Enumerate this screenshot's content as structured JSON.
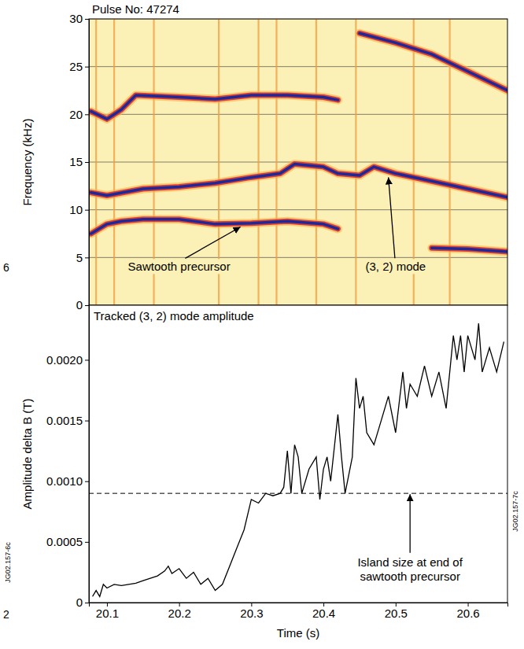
{
  "chart_data": [
    {
      "type": "spectrogram",
      "title": "Pulse No: 47274",
      "y_label": "Frequency (kHz)",
      "xlim": [
        20.075,
        20.655
      ],
      "ylim": [
        0,
        30
      ],
      "yticks": [
        0,
        5,
        10,
        15,
        20,
        25,
        30
      ],
      "grid": true,
      "tick_labels": "y",
      "series": [
        {
          "type": "line",
          "color": "#1b2a9a",
          "x": [
            20.078,
            20.1,
            20.15,
            20.2,
            20.25,
            20.3,
            20.34,
            20.36,
            20.4,
            20.42,
            20.45,
            20.47,
            20.5,
            20.55,
            20.6,
            20.655
          ],
          "values": [
            11.8,
            11.5,
            12.2,
            12.4,
            12.8,
            13.4,
            13.8,
            14.8,
            14.5,
            13.8,
            13.6,
            14.5,
            13.8,
            13.0,
            12.2,
            11.3
          ]
        },
        {
          "type": "line",
          "color": "#1b2a9a",
          "x": [
            20.078,
            20.1,
            20.12,
            20.14,
            20.2,
            20.25,
            20.3,
            20.35,
            20.4,
            20.42
          ],
          "values": [
            20.3,
            19.5,
            20.5,
            22.0,
            21.8,
            21.6,
            22.0,
            22.0,
            21.8,
            21.5
          ]
        },
        {
          "type": "line",
          "color": "#1b2a9a",
          "x": [
            20.45,
            20.5,
            20.55,
            20.6,
            20.655
          ],
          "values": [
            28.5,
            27.5,
            26.3,
            24.5,
            22.5
          ]
        },
        {
          "type": "line",
          "color": "#1b2a9a",
          "x": [
            20.078,
            20.1,
            20.12,
            20.15,
            20.2,
            20.25,
            20.3,
            20.35,
            20.4,
            20.42
          ],
          "values": [
            7.5,
            8.5,
            8.8,
            9.0,
            9.0,
            8.5,
            8.6,
            8.8,
            8.5,
            8.0
          ]
        },
        {
          "type": "line",
          "color": "#1b2a9a",
          "x": [
            20.55,
            20.6,
            20.655
          ],
          "values": [
            6.0,
            5.9,
            5.6
          ]
        },
        {
          "type": "vline",
          "color": "#f39c3c",
          "x": [
            20.085,
            20.11,
            20.165,
            20.255,
            20.31,
            20.335,
            20.39,
            20.445,
            20.525,
            20.575
          ]
        }
      ],
      "annotations": [
        {
          "text": "Sawtooth precursor",
          "x": 20.285,
          "y": 8.2,
          "text_x": 20.2,
          "text_y": 3.6
        },
        {
          "text": "(3, 2) mode",
          "x": 20.49,
          "y": 13.4,
          "text_x": 20.5,
          "text_y": 3.6
        }
      ]
    },
    {
      "type": "line",
      "title": "Tracked (3, 2) mode amplitude",
      "x_label": "Time (s)",
      "y_label": "Amplitude delta B (T)",
      "xlim": [
        20.075,
        20.655
      ],
      "ylim": [
        0,
        0.00245
      ],
      "xticks": [
        20.1,
        20.2,
        20.3,
        20.4,
        20.5,
        20.6
      ],
      "yticks": [
        0,
        {
          "value": 0.0005,
          "label": "0.0005"
        },
        {
          "value": 0.001,
          "label": "0.0010"
        },
        {
          "value": 0.0015,
          "label": "0.0015"
        },
        {
          "value": 0.002,
          "label": "0.0020"
        }
      ],
      "series": [
        {
          "color": "#000000",
          "x": [
            20.08,
            20.085,
            20.09,
            20.095,
            20.1,
            20.11,
            20.12,
            20.13,
            20.14,
            20.15,
            20.16,
            20.17,
            20.18,
            20.185,
            20.19,
            20.2,
            20.21,
            20.22,
            20.23,
            20.24,
            20.25,
            20.26,
            20.27,
            20.28,
            20.29,
            20.3,
            20.31,
            20.32,
            20.33,
            20.34,
            20.345,
            20.35,
            20.355,
            20.36,
            20.365,
            20.37,
            20.38,
            20.39,
            20.395,
            20.4,
            20.405,
            20.41,
            20.42,
            20.425,
            20.43,
            20.44,
            20.445,
            20.45,
            20.455,
            20.46,
            20.47,
            20.48,
            20.49,
            20.5,
            20.51,
            20.515,
            20.52,
            20.53,
            20.54,
            20.55,
            20.56,
            20.57,
            20.58,
            20.585,
            20.59,
            20.595,
            20.6,
            20.61,
            20.615,
            20.62,
            20.63,
            20.64,
            20.65
          ],
          "values": [
            5e-05,
            0.0001,
            5e-05,
            0.00015,
            0.00012,
            0.00015,
            0.00014,
            0.00015,
            0.00016,
            0.00018,
            0.0002,
            0.00022,
            0.00026,
            0.0003,
            0.00024,
            0.00028,
            0.0002,
            0.00025,
            0.00015,
            0.0002,
            0.0001,
            0.00015,
            0.0003,
            0.00045,
            0.0006,
            0.00085,
            0.00082,
            0.0009,
            0.00088,
            0.0009,
            0.00095,
            0.00125,
            0.0009,
            0.0013,
            0.0012,
            0.0009,
            0.0011,
            0.0012,
            0.00085,
            0.0011,
            0.0012,
            0.001,
            0.00155,
            0.0012,
            0.0009,
            0.0012,
            0.00185,
            0.0016,
            0.0017,
            0.0014,
            0.0013,
            0.0015,
            0.0017,
            0.0014,
            0.0019,
            0.0016,
            0.0018,
            0.0017,
            0.00195,
            0.0017,
            0.0019,
            0.0016,
            0.0022,
            0.002,
            0.0022,
            0.0019,
            0.0022,
            0.002,
            0.0023,
            0.0019,
            0.0021,
            0.0019,
            0.00215
          ]
        }
      ],
      "hline": {
        "value": 0.0009,
        "line_style": "dashed"
      },
      "annotations": [
        {
          "text": "Island size at end of sawtooth precursor",
          "x": 20.52,
          "y": 0.0009,
          "text_x": 20.52,
          "text_y": 0.0003
        }
      ]
    }
  ],
  "margin_texts": [
    "6",
    "2",
    "JG02.157-6c",
    "JG02.157-7c"
  ]
}
